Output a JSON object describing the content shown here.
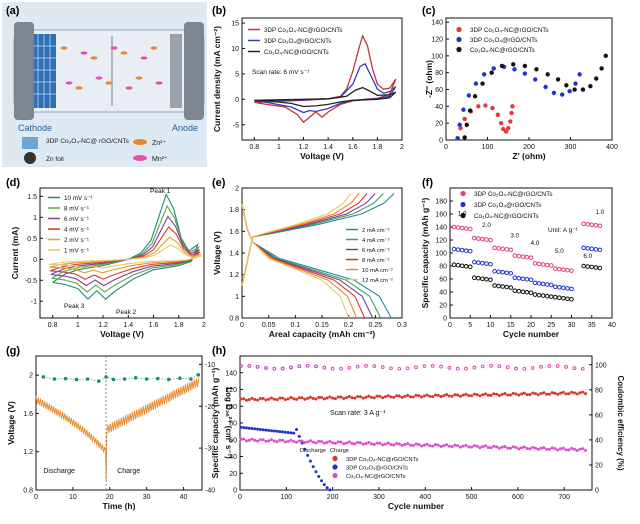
{
  "figure": {
    "panel_labels": [
      "(a)",
      "(b)",
      "(c)",
      "(d)",
      "(e)",
      "(f)",
      "(g)",
      "(h)"
    ]
  },
  "panel_a": {
    "cathode_label": "Cathode",
    "anode_label": "Anode",
    "legend": [
      {
        "name": "3DP Co3O4-NC@rGO/CNTs",
        "text": "3DP Co₃O₄-NC@ rGO/CNTs",
        "icon": "blue-grid-icon"
      },
      {
        "name": "Zn foil",
        "text": "Zn foil",
        "icon": "dark-sphere-icon"
      },
      {
        "name": "Zn2+",
        "text": "Zn²⁺",
        "icon": "orange-ion-icon"
      },
      {
        "name": "Mn2+",
        "text": "Mn²⁺",
        "icon": "pink-ion-icon"
      }
    ],
    "colors": {
      "cathode_grid": "#2f6fb3",
      "zn_ion": "#e8892c",
      "mn_ion": "#e64fb0",
      "background": "#cfe0ef"
    }
  },
  "chart_data": [
    {
      "id": "b",
      "type": "line",
      "xlabel": "Voltage (V)",
      "ylabel": "Current density (mA cm⁻²)",
      "annotation": "Scan rate: 6 mV s⁻¹",
      "xlim": [
        0.7,
        2.0
      ],
      "xticks": [
        0.8,
        1.0,
        1.2,
        1.4,
        1.6,
        1.8,
        2.0
      ],
      "ylim": [
        -8,
        16
      ],
      "yticks": [
        -5,
        0,
        5,
        10,
        15
      ],
      "series": [
        {
          "name": "3DP Co₃O₄-NC@rGO/CNTs",
          "color": "#c8323a",
          "anodic": [
            [
              0.8,
              -0.6
            ],
            [
              1.0,
              -0.4
            ],
            [
              1.2,
              -0.2
            ],
            [
              1.4,
              0.1
            ],
            [
              1.5,
              0.6
            ],
            [
              1.55,
              2.0
            ],
            [
              1.6,
              5.5
            ],
            [
              1.65,
              10.0
            ],
            [
              1.68,
              12.5
            ],
            [
              1.72,
              10.5
            ],
            [
              1.76,
              6.0
            ],
            [
              1.8,
              3.0
            ],
            [
              1.85,
              2.0
            ],
            [
              1.9,
              2.2
            ],
            [
              1.95,
              4.0
            ]
          ],
          "cathodic": [
            [
              1.95,
              4.0
            ],
            [
              1.9,
              1.0
            ],
            [
              1.8,
              0.2
            ],
            [
              1.7,
              0.0
            ],
            [
              1.6,
              -0.3
            ],
            [
              1.5,
              -1.0
            ],
            [
              1.4,
              -2.5
            ],
            [
              1.35,
              -3.5
            ],
            [
              1.3,
              -2.5
            ],
            [
              1.25,
              -3.5
            ],
            [
              1.2,
              -4.5
            ],
            [
              1.15,
              -3.0
            ],
            [
              1.05,
              -1.5
            ],
            [
              0.9,
              -1.0
            ],
            [
              0.8,
              -0.6
            ]
          ]
        },
        {
          "name": "3DP Co₃O₄@rGO/CNTs",
          "color": "#2c3fbf",
          "anodic": [
            [
              0.8,
              -0.3
            ],
            [
              1.0,
              -0.2
            ],
            [
              1.2,
              -0.1
            ],
            [
              1.4,
              0.1
            ],
            [
              1.5,
              0.4
            ],
            [
              1.6,
              3.0
            ],
            [
              1.66,
              6.5
            ],
            [
              1.7,
              7.0
            ],
            [
              1.74,
              5.0
            ],
            [
              1.8,
              2.0
            ],
            [
              1.85,
              1.2
            ],
            [
              1.9,
              1.5
            ],
            [
              1.95,
              2.5
            ]
          ],
          "cathodic": [
            [
              1.95,
              2.5
            ],
            [
              1.9,
              0.6
            ],
            [
              1.8,
              0.1
            ],
            [
              1.6,
              -0.2
            ],
            [
              1.5,
              -0.8
            ],
            [
              1.4,
              -1.8
            ],
            [
              1.3,
              -2.4
            ],
            [
              1.25,
              -2.2
            ],
            [
              1.2,
              -2.6
            ],
            [
              1.1,
              -1.5
            ],
            [
              0.9,
              -0.6
            ],
            [
              0.8,
              -0.3
            ]
          ]
        },
        {
          "name": "Co₃O₄-NC@rGO/CNTs",
          "color": "#222222",
          "anodic": [
            [
              0.8,
              -0.2
            ],
            [
              1.0,
              -0.1
            ],
            [
              1.2,
              0.0
            ],
            [
              1.4,
              0.1
            ],
            [
              1.55,
              0.6
            ],
            [
              1.62,
              1.8
            ],
            [
              1.68,
              2.3
            ],
            [
              1.74,
              1.6
            ],
            [
              1.8,
              0.8
            ],
            [
              1.9,
              0.9
            ],
            [
              1.95,
              1.4
            ]
          ],
          "cathodic": [
            [
              1.95,
              1.4
            ],
            [
              1.9,
              0.3
            ],
            [
              1.8,
              0.0
            ],
            [
              1.6,
              -0.2
            ],
            [
              1.5,
              -0.5
            ],
            [
              1.4,
              -1.0
            ],
            [
              1.3,
              -1.3
            ],
            [
              1.2,
              -1.4
            ],
            [
              1.1,
              -0.8
            ],
            [
              0.9,
              -0.3
            ],
            [
              0.8,
              -0.2
            ]
          ]
        }
      ]
    },
    {
      "id": "c",
      "type": "scatter",
      "xlabel": "Z' (ohm)",
      "ylabel": "-Z'' (ohm)",
      "xlim": [
        0,
        400
      ],
      "xticks": [
        0,
        100,
        200,
        300,
        400
      ],
      "ylim": [
        0,
        145
      ],
      "yticks": [
        0,
        20,
        40,
        60,
        80,
        100,
        120,
        140
      ],
      "series": [
        {
          "name": "3DP Co₃O₄-NC@rGO/CNTs",
          "color": "#e23b3b",
          "points": [
            [
              28,
              2
            ],
            [
              35,
              14
            ],
            [
              45,
              25
            ],
            [
              60,
              34
            ],
            [
              78,
              40
            ],
            [
              95,
              41
            ],
            [
              112,
              38
            ],
            [
              125,
              30
            ],
            [
              133,
              20
            ],
            [
              138,
              13
            ],
            [
              145,
              10
            ],
            [
              150,
              14
            ],
            [
              155,
              22
            ],
            [
              158,
              32
            ],
            [
              160,
              40
            ]
          ]
        },
        {
          "name": "3DP Co₃O₄@rGO/CNTs",
          "color": "#2233cc",
          "points": [
            [
              28,
              2
            ],
            [
              33,
              18
            ],
            [
              42,
              36
            ],
            [
              55,
              53
            ],
            [
              72,
              67
            ],
            [
              92,
              78
            ],
            [
              115,
              85
            ],
            [
              140,
              87
            ],
            [
              165,
              84
            ],
            [
              190,
              79
            ],
            [
              215,
              72
            ],
            [
              240,
              63
            ],
            [
              260,
              56
            ],
            [
              280,
              54
            ],
            [
              298,
              58
            ],
            [
              312,
              67
            ],
            [
              322,
              78
            ]
          ]
        },
        {
          "name": "Co₃O₄-NC@rGO/CNTs",
          "color": "#111111",
          "points": [
            [
              45,
              3
            ],
            [
              50,
              18
            ],
            [
              58,
              35
            ],
            [
              70,
              52
            ],
            [
              88,
              67
            ],
            [
              110,
              80
            ],
            [
              135,
              88
            ],
            [
              162,
              90
            ],
            [
              190,
              88
            ],
            [
              218,
              84
            ],
            [
              245,
              78
            ],
            [
              270,
              72
            ],
            [
              290,
              65
            ],
            [
              310,
              60
            ],
            [
              330,
              60
            ],
            [
              348,
              64
            ],
            [
              362,
              73
            ],
            [
              375,
              85
            ],
            [
              385,
              100
            ]
          ]
        }
      ]
    },
    {
      "id": "d",
      "type": "line",
      "xlabel": "Voltage (V)",
      "ylabel": "Current (mA)",
      "xlim": [
        0.7,
        2.0
      ],
      "xticks": [
        0.8,
        1.0,
        1.2,
        1.4,
        1.6,
        1.8,
        2.0
      ],
      "ylim": [
        -1.4,
        1.7
      ],
      "yticks": [
        -1.0,
        -0.5,
        0.0,
        0.5,
        1.0,
        1.5
      ],
      "annotations": [
        "Peak 1",
        "Peak 2",
        "Peak 3"
      ],
      "series": [
        {
          "name": "10 mV s⁻¹",
          "color": "#1f8a7a",
          "scale": 1.0
        },
        {
          "name": "8 mV s⁻¹",
          "color": "#5aa845",
          "scale": 0.82
        },
        {
          "name": "6 mV s⁻¹",
          "color": "#7a3fa0",
          "scale": 0.66
        },
        {
          "name": "4 mV s⁻¹",
          "color": "#d8362b",
          "scale": 0.5
        },
        {
          "name": "2 mV s⁻¹",
          "color": "#e0a02a",
          "scale": 0.34
        },
        {
          "name": "1 mV s⁻¹",
          "color": "#e8c96a",
          "scale": 0.22
        }
      ]
    },
    {
      "id": "e",
      "type": "line",
      "xlabel": "Areal capacity (mAh cm⁻²)",
      "ylabel": "Voltage (V)",
      "xlim": [
        0.0,
        0.3
      ],
      "xticks": [
        0.0,
        0.05,
        0.1,
        0.15,
        0.2,
        0.25,
        0.3
      ],
      "ylim": [
        0.8,
        2.0
      ],
      "yticks": [
        0.8,
        1.0,
        1.2,
        1.4,
        1.6,
        1.8,
        2.0
      ],
      "series": [
        {
          "name": "2 mA cm⁻²",
          "color": "#1f8a9a",
          "capacity": 0.28
        },
        {
          "name": "4 mA cm⁻²",
          "color": "#3ca060",
          "capacity": 0.26
        },
        {
          "name": "6 mA cm⁻²",
          "color": "#7a3fa0",
          "capacity": 0.245
        },
        {
          "name": "8 mA cm⁻²",
          "color": "#d8362b",
          "capacity": 0.23
        },
        {
          "name": "10 mA cm⁻²",
          "color": "#e8892c",
          "capacity": 0.215
        },
        {
          "name": "12 mA cm⁻²",
          "color": "#e8c96a",
          "capacity": 0.2
        }
      ]
    },
    {
      "id": "f",
      "type": "scatter",
      "xlabel": "Cycle number",
      "ylabel": "Specific capacity (mAh g⁻¹)",
      "xlim": [
        0,
        40
      ],
      "xticks": [
        0,
        5,
        10,
        15,
        20,
        25,
        30,
        35,
        40
      ],
      "ylim": [
        0,
        200
      ],
      "yticks": [
        0,
        20,
        40,
        60,
        80,
        100,
        120,
        140,
        160,
        180
      ],
      "unit_label": "Unit: A g⁻¹",
      "rate_labels": [
        "1.0",
        "2.0",
        "3.0",
        "4.0",
        "5.0",
        "6.0",
        "1.0"
      ],
      "series": [
        {
          "name": "3DP Co₃O₄-NC@rGO/CNTs",
          "color": "#e2407a",
          "levels": [
            140,
            123,
            108,
            96,
            84,
            76,
            145
          ]
        },
        {
          "name": "3DP Co₃O₄@rGO/CNTs",
          "color": "#2233cc",
          "levels": [
            106,
            86,
            72,
            62,
            54,
            48,
            108
          ]
        },
        {
          "name": "Co₃O₄-NC@rGO/CNTs",
          "color": "#111111",
          "levels": [
            82,
            62,
            50,
            42,
            36,
            32,
            80
          ]
        }
      ]
    },
    {
      "id": "g",
      "type": "line",
      "xlabel": "Time (h)",
      "ylabel": "Voltage (V)",
      "ylabel_right": "Log D₂ₙ²⁺ (cm² s⁻¹)",
      "xlim": [
        0,
        45
      ],
      "xticks": [
        0,
        10,
        20,
        30,
        40
      ],
      "ylim": [
        0.8,
        2.2
      ],
      "yticks": [
        0.8,
        1.2,
        1.6,
        2.0
      ],
      "ylim_right": [
        -40,
        -8
      ],
      "yticks_right": [
        -10,
        -20,
        -30,
        -40
      ],
      "annotations": [
        "Discharge",
        "Charge"
      ],
      "voltage_color": "#e8892c",
      "diffusion_color": "#1f8a7a",
      "diffusion": [
        [
          2,
          -13
        ],
        [
          5,
          -13.5
        ],
        [
          8,
          -13.4
        ],
        [
          11,
          -13.6
        ],
        [
          14,
          -13.5
        ],
        [
          17,
          -14
        ],
        [
          19,
          -13
        ],
        [
          21,
          -13.6
        ],
        [
          24,
          -13.5
        ],
        [
          27,
          -13.2
        ],
        [
          30,
          -13.5
        ],
        [
          33,
          -13.4
        ],
        [
          36,
          -13.6
        ],
        [
          39,
          -13.3
        ],
        [
          42,
          -13.5
        ],
        [
          44,
          -12.5
        ]
      ]
    },
    {
      "id": "h",
      "type": "scatter",
      "xlabel": "Cycle number",
      "ylabel": "Specific capacity (mAh g⁻¹)",
      "ylabel_right": "Coulombic efficiency (%)",
      "annotation": "Scan rate: 3 A g⁻¹",
      "xlim": [
        0,
        760
      ],
      "xticks": [
        0,
        100,
        200,
        300,
        400,
        500,
        600,
        700
      ],
      "ylim": [
        0,
        160
      ],
      "yticks": [
        0,
        20,
        40,
        60,
        80,
        100,
        120,
        140
      ],
      "ylim_right": [
        0,
        107
      ],
      "yticks_right": [
        0,
        20,
        40,
        60,
        80,
        100
      ],
      "legend_header": [
        "Discharge",
        "Charge"
      ],
      "series": [
        {
          "name": "3DP Co₃O₄-NC@rGO/CNTs",
          "color": "#d8362b",
          "capacity_start": 108,
          "capacity_end": 116,
          "end_cycle": 750
        },
        {
          "name": "3DP Co₃O₄@rGO/CNTs",
          "color": "#2233cc",
          "capacity_start": 75,
          "capacity_end": 0,
          "end_cycle": 195
        },
        {
          "name": "Co₃O₄-NC@rGO/CNTs",
          "color": "#d94fd0",
          "capacity_start": 60,
          "capacity_end": 48,
          "end_cycle": 750
        }
      ]
    }
  ]
}
